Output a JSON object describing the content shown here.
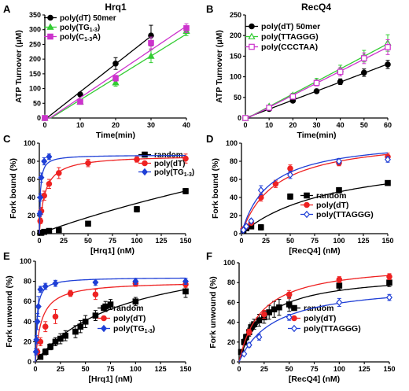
{
  "chart_data": [
    {
      "type": "line",
      "panel": "A",
      "title": "Hrq1",
      "xlabel": "Time(min)",
      "ylabel": "ATP Turnover (μM)",
      "xlim": [
        0,
        40
      ],
      "ylim": [
        0,
        350
      ],
      "xticks": [
        0,
        10,
        20,
        30,
        40
      ],
      "yticks": [
        0,
        50,
        100,
        150,
        200,
        250,
        300,
        350
      ],
      "legend_position": "top-left",
      "series": [
        {
          "name": "poly(dT) 50mer",
          "legend_name": "poly(dT) 50mer",
          "color": "#000000",
          "marker": "circle",
          "fit": "linear",
          "x": [
            0,
            10,
            20,
            30
          ],
          "y": [
            0,
            80,
            185,
            280
          ],
          "err": [
            0,
            6,
            20,
            35
          ]
        },
        {
          "name": "poly(TG1-3)",
          "legend_name": "poly(TG",
          "legend_sub": "1-3",
          "legend_tail": ")",
          "color": "#33cc33",
          "marker": "triangle",
          "fit": "linear",
          "x": [
            0,
            10,
            20,
            30,
            40
          ],
          "y": [
            0,
            55,
            120,
            210,
            295
          ],
          "err": [
            0,
            5,
            12,
            22,
            15
          ]
        },
        {
          "name": "poly(C1-3A)",
          "legend_name": "poly(C",
          "legend_sub": "1-3",
          "legend_tail": "A)",
          "color": "#cc33cc",
          "marker": "square",
          "fit": "linear",
          "x": [
            0,
            10,
            20,
            30,
            40
          ],
          "y": [
            0,
            55,
            135,
            255,
            305
          ],
          "err": [
            0,
            5,
            10,
            20,
            15
          ]
        }
      ]
    },
    {
      "type": "line",
      "panel": "B",
      "title": "RecQ4",
      "xlabel": "Time(min)",
      "ylabel": "ATP Turnover (μM)",
      "xlim": [
        0,
        60
      ],
      "ylim": [
        0,
        250
      ],
      "xticks": [
        0,
        10,
        20,
        30,
        40,
        50,
        60
      ],
      "yticks": [
        0,
        50,
        100,
        150,
        200,
        250
      ],
      "legend_position": "top-left",
      "series": [
        {
          "name": "poly(dT) 50mer",
          "legend_name": "poly(dT) 50mer",
          "color": "#000000",
          "marker": "circle",
          "fit": "linear",
          "x": [
            0,
            10,
            20,
            30,
            40,
            50,
            60
          ],
          "y": [
            0,
            22,
            42,
            65,
            88,
            110,
            130
          ],
          "err": [
            0,
            3,
            4,
            5,
            7,
            9,
            10
          ]
        },
        {
          "name": "poly(TTAGGG)",
          "legend_name": "poly(TTAGGG)",
          "color": "#33cc33",
          "marker": "triangle-open",
          "fit": "linear",
          "x": [
            0,
            10,
            20,
            30,
            40,
            50,
            60
          ],
          "y": [
            0,
            28,
            55,
            88,
            118,
            150,
            182
          ],
          "err": [
            0,
            3,
            5,
            8,
            10,
            14,
            20
          ]
        },
        {
          "name": "poly(CCCTAA)",
          "legend_name": "poly(CCCTAA)",
          "color": "#cc33cc",
          "marker": "square-open",
          "fit": "linear",
          "x": [
            0,
            10,
            20,
            30,
            40,
            50,
            60
          ],
          "y": [
            0,
            25,
            52,
            85,
            112,
            145,
            172
          ],
          "err": [
            0,
            3,
            5,
            7,
            10,
            13,
            18
          ]
        }
      ]
    },
    {
      "type": "scatter",
      "panel": "C",
      "title": "",
      "xlabel": "[Hrq1] (nM)",
      "ylabel": "Fork bound (%)",
      "xlim": [
        0,
        150
      ],
      "ylim": [
        0,
        100
      ],
      "xticks": [
        0,
        25,
        50,
        75,
        100,
        125,
        150
      ],
      "yticks": [
        0,
        20,
        40,
        60,
        80,
        100
      ],
      "legend_position": "top-right",
      "series": [
        {
          "name": "random",
          "legend_name": "random",
          "color": "#000000",
          "marker": "square",
          "fit": "hyperbolic",
          "bmax": 245,
          "kd": 630,
          "x": [
            1,
            2,
            5,
            10,
            20,
            50,
            100,
            150
          ],
          "y": [
            1,
            1,
            2,
            3,
            4,
            11,
            27,
            47
          ],
          "err": [
            0,
            0,
            0,
            1,
            1,
            2,
            3,
            3
          ]
        },
        {
          "name": "poly(dT)",
          "legend_name": "poly(dT)",
          "color": "#ee2222",
          "marker": "circle",
          "fit": "hyperbolic",
          "bmax": 87,
          "kd": 5.5,
          "x": [
            1,
            2,
            5,
            10,
            20,
            50,
            100,
            150
          ],
          "y": [
            14,
            25,
            42,
            55,
            67,
            78,
            82,
            83
          ],
          "err": [
            3,
            4,
            5,
            5,
            6,
            4,
            3,
            5
          ]
        },
        {
          "name": "poly(TG1-3)",
          "legend_name": "poly(TG",
          "legend_sub": "1-3",
          "legend_tail": ")",
          "color": "#1f3fd6",
          "marker": "diamond",
          "fit": "hyperbolic",
          "bmax": 87,
          "kd": 1.0,
          "x": [
            0.5,
            1,
            2,
            5,
            10
          ],
          "y": [
            22,
            40,
            62,
            80,
            85
          ],
          "err": [
            3,
            4,
            5,
            4,
            3
          ]
        }
      ]
    },
    {
      "type": "scatter",
      "panel": "D",
      "title": "",
      "xlabel": "[RecQ4] (nM)",
      "ylabel": "Fork bound (%)",
      "xlim": [
        0,
        150
      ],
      "ylim": [
        0,
        100
      ],
      "xticks": [
        0,
        25,
        50,
        75,
        100,
        125,
        150
      ],
      "yticks": [
        0,
        20,
        40,
        60,
        80,
        100
      ],
      "legend_position": "bottom-right",
      "series": [
        {
          "name": "random",
          "legend_name": "random",
          "color": "#000000",
          "marker": "square",
          "fit": "hyperbolic",
          "bmax": 90,
          "kd": 95,
          "x": [
            2,
            5,
            10,
            20,
            50,
            100,
            150
          ],
          "y": [
            3,
            6,
            8,
            7,
            41,
            48,
            56
          ],
          "err": [
            1,
            1,
            2,
            3,
            3,
            3,
            2
          ]
        },
        {
          "name": "poly(dT)",
          "legend_name": "poly(dT)",
          "color": "#ee2222",
          "marker": "circle",
          "fit": "hyperbolic",
          "bmax": 108,
          "kd": 35,
          "x": [
            2,
            5,
            10,
            20,
            35,
            50,
            100,
            150
          ],
          "y": [
            5,
            8,
            12,
            40,
            55,
            72,
            78,
            85
          ],
          "err": [
            1,
            1,
            2,
            4,
            4,
            4,
            3,
            4
          ]
        },
        {
          "name": "poly(TTAGGG)",
          "legend_name": "poly(TTAGGG)",
          "color": "#1f3fd6",
          "marker": "diamond-open",
          "fit": "hyperbolic",
          "bmax": 106,
          "kd": 28,
          "x": [
            2,
            5,
            10,
            20,
            50,
            100,
            150
          ],
          "y": [
            4,
            8,
            14,
            48,
            65,
            80,
            82
          ],
          "err": [
            1,
            1,
            2,
            5,
            4,
            3,
            3
          ]
        }
      ]
    },
    {
      "type": "scatter",
      "panel": "E",
      "title": "",
      "xlabel": "[Hrq1] (nM)",
      "ylabel": "Fork unwound (%)",
      "xlim": [
        0,
        150
      ],
      "ylim": [
        0,
        100
      ],
      "xticks": [
        0,
        25,
        50,
        75,
        100,
        125,
        150
      ],
      "yticks": [
        0,
        20,
        40,
        60,
        80,
        100
      ],
      "legend_position": "bottom-right",
      "series": [
        {
          "name": "random",
          "legend_name": "random",
          "color": "#000000",
          "marker": "square",
          "fit": "hyperbolic",
          "bmax": 115,
          "kd": 90,
          "x": [
            5,
            10,
            15,
            20,
            25,
            30,
            40,
            45,
            50,
            60,
            70,
            75,
            100,
            150
          ],
          "y": [
            5,
            10,
            15,
            20,
            23,
            26,
            30,
            35,
            40,
            46,
            55,
            57,
            60,
            70
          ],
          "err": [
            2,
            3,
            3,
            4,
            5,
            5,
            6,
            6,
            6,
            5,
            5,
            5,
            4,
            6
          ]
        },
        {
          "name": "poly(dT)",
          "legend_name": "poly(dT)",
          "color": "#ee2222",
          "marker": "circle",
          "fit": "hyperbolic",
          "bmax": 80,
          "kd": 6,
          "x": [
            2,
            5,
            10,
            20,
            35,
            60,
            100,
            150
          ],
          "y": [
            10,
            20,
            35,
            45,
            68,
            67,
            78,
            77
          ],
          "err": [
            3,
            4,
            5,
            7,
            3,
            5,
            3,
            3
          ]
        },
        {
          "name": "poly(TG1-3)",
          "legend_name": "poly(TG",
          "legend_sub": "1-3",
          "legend_tail": ")",
          "color": "#1f3fd6",
          "marker": "diamond",
          "fit": "hyperbolic",
          "bmax": 84,
          "kd": 1.5,
          "x": [
            0.5,
            1,
            2,
            3,
            5,
            10,
            20,
            60,
            100,
            150
          ],
          "y": [
            10,
            22,
            40,
            55,
            72,
            75,
            78,
            79,
            80,
            80
          ],
          "err": [
            3,
            4,
            8,
            10,
            3,
            3,
            3,
            3,
            3,
            3
          ]
        }
      ]
    },
    {
      "type": "scatter",
      "panel": "F",
      "title": "",
      "xlabel": "[RecQ4] (nM)",
      "ylabel": "Fork unwound (%)",
      "xlim": [
        0,
        150
      ],
      "ylim": [
        0,
        100
      ],
      "xticks": [
        0,
        25,
        50,
        75,
        100,
        125,
        150
      ],
      "yticks": [
        0,
        20,
        40,
        60,
        80,
        100
      ],
      "legend_position": "bottom-right",
      "series": [
        {
          "name": "random",
          "legend_name": "random",
          "color": "#000000",
          "marker": "square",
          "fit": "hyperbolic",
          "bmax": 90,
          "kd": 25,
          "x": [
            2,
            5,
            7,
            10,
            12,
            15,
            20,
            25,
            30,
            35,
            40,
            50,
            100,
            150
          ],
          "y": [
            10,
            20,
            25,
            30,
            35,
            38,
            42,
            45,
            50,
            53,
            55,
            58,
            77,
            80
          ],
          "err": [
            2,
            3,
            3,
            4,
            4,
            5,
            6,
            6,
            7,
            8,
            8,
            7,
            4,
            4
          ]
        },
        {
          "name": "poly(dT)",
          "legend_name": "poly(dT)",
          "color": "#ee2222",
          "marker": "circle",
          "fit": "hyperbolic",
          "bmax": 100,
          "kd": 22,
          "x": [
            10,
            25,
            50,
            100,
            150
          ],
          "y": [
            30,
            48,
            68,
            83,
            86
          ],
          "err": [
            3,
            4,
            4,
            3,
            3
          ]
        },
        {
          "name": "poly(TTAGGG)",
          "legend_name": "poly(TTAGGG)",
          "color": "#1f3fd6",
          "marker": "diamond-open",
          "fit": "hyperbolic",
          "bmax": 80,
          "kd": 35,
          "x": [
            5,
            10,
            20,
            50,
            100,
            150
          ],
          "y": [
            8,
            17,
            25,
            45,
            60,
            65
          ],
          "err": [
            1,
            2,
            3,
            3,
            4,
            3
          ]
        }
      ]
    }
  ]
}
